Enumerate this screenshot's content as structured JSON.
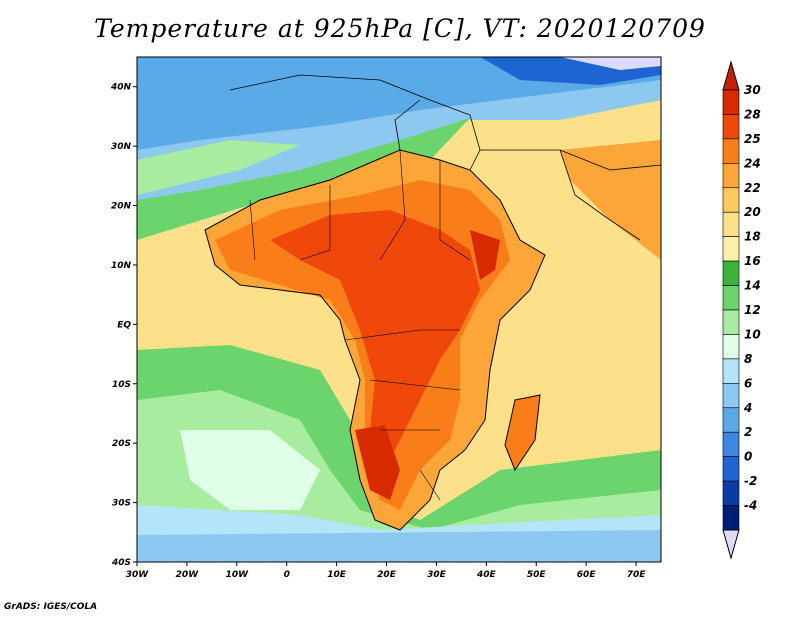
{
  "title": "Temperature at 925hPa [C], VT: 2020120709",
  "credit": "GrADS: IGES/COLA",
  "map": {
    "type": "filled-contour-map",
    "lon_range": [
      -30,
      75
    ],
    "lat_range": [
      -40,
      45
    ],
    "x_ticks": [
      "30W",
      "20W",
      "10W",
      "0",
      "10E",
      "20E",
      "30E",
      "40E",
      "50E",
      "60E",
      "70E"
    ],
    "y_ticks": [
      "40N",
      "30N",
      "20N",
      "10N",
      "EQ",
      "10S",
      "20S",
      "30S",
      "40S"
    ]
  },
  "colorbar": {
    "levels": [
      "30",
      "28",
      "25",
      "24",
      "22",
      "20",
      "18",
      "16",
      "14",
      "12",
      "10",
      "8",
      "6",
      "4",
      "2",
      "0",
      "-2",
      "-4"
    ],
    "colors": [
      "#d72a00",
      "#f0480a",
      "#f97e1a",
      "#fca63a",
      "#fdc95e",
      "#fde08a",
      "#fff0a8",
      "#3cb43c",
      "#6cd46c",
      "#a8eca0",
      "#e0ffe8",
      "#b4e4f8",
      "#8cc8f0",
      "#5aaae8",
      "#3c88e0",
      "#1e64d2",
      "#0a3ca8",
      "#001e78"
    ],
    "top_color": "#c81e00",
    "bottom_color": "#dcdcfa"
  }
}
